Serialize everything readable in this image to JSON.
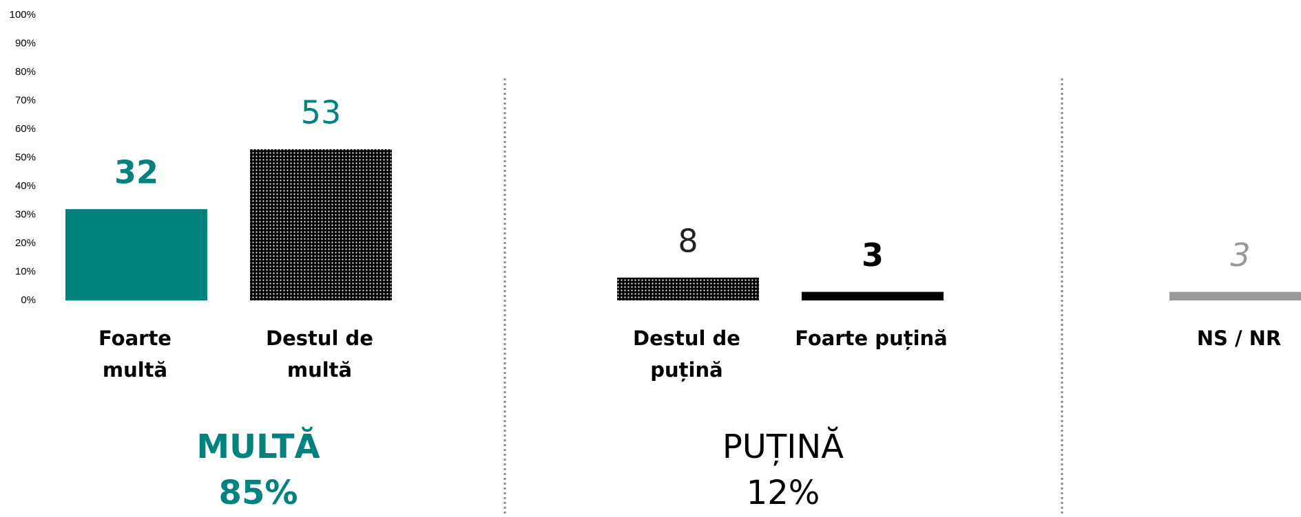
{
  "chart_data": {
    "type": "bar",
    "categories": [
      [
        "Foarte",
        "multă"
      ],
      [
        "Destul de",
        "multă"
      ],
      [
        "Destul de",
        "puțină"
      ],
      [
        "Foarte puțină"
      ],
      [
        "NS / NR"
      ]
    ],
    "values": [
      32,
      53,
      8,
      3,
      3
    ],
    "colors": [
      "#00827f",
      "#00827f",
      "#222222",
      "#000000",
      "#999999"
    ],
    "patterns": [
      "solid",
      "dots",
      "dots",
      "solid",
      "solid"
    ],
    "label_styles": [
      "bold",
      "normal",
      "normal",
      "bold",
      "italic"
    ],
    "ylim": [
      0,
      100
    ],
    "yticks": [
      {
        "value": 0,
        "label": "0%"
      },
      {
        "value": 10,
        "label": "10%"
      },
      {
        "value": 20,
        "label": "20%"
      },
      {
        "value": 30,
        "label": "30%"
      },
      {
        "value": 40,
        "label": "40%"
      },
      {
        "value": 50,
        "label": "50%"
      },
      {
        "value": 60,
        "label": "60%"
      },
      {
        "value": 70,
        "label": "70%"
      },
      {
        "value": 80,
        "label": "80%"
      },
      {
        "value": 90,
        "label": "90%"
      },
      {
        "value": 100,
        "label": "100%"
      }
    ],
    "grid": false,
    "groups": [
      {
        "name": "MULTĂ",
        "total": 85,
        "total_label": "85%",
        "color": "#00827f",
        "bold": true
      },
      {
        "name": "PUȚINĂ",
        "total": 12,
        "total_label": "12%",
        "color": "#000000",
        "bold": false
      }
    ]
  }
}
